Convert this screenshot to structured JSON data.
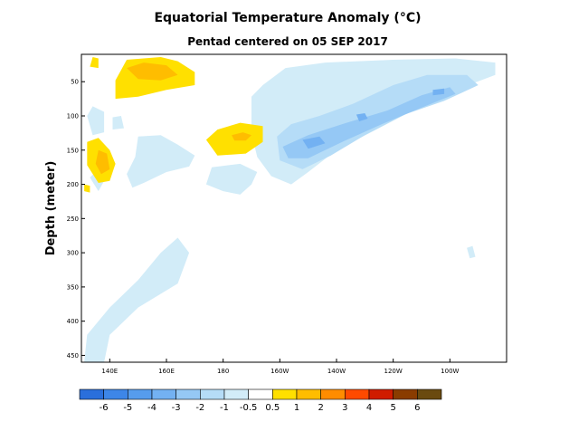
{
  "chart_data": {
    "type": "heatmap",
    "title": "Equatorial Temperature Anomaly (°C)",
    "subtitle": "Pentad centered on 05 SEP 2017",
    "ylabel": "Depth (meter)",
    "xlabel": "",
    "x_ticks": [
      {
        "lon": 140,
        "label": "140E"
      },
      {
        "lon": 160,
        "label": "160E"
      },
      {
        "lon": 180,
        "label": "180"
      },
      {
        "lon": 200,
        "label": "160W"
      },
      {
        "lon": 220,
        "label": "140W"
      },
      {
        "lon": 240,
        "label": "120W"
      },
      {
        "lon": 260,
        "label": "100W"
      }
    ],
    "y_ticks": [
      50,
      100,
      150,
      200,
      250,
      300,
      350,
      400,
      450
    ],
    "xlim": [
      130,
      280
    ],
    "ylim": [
      10,
      460
    ],
    "grid": false,
    "colorbar": {
      "colors": [
        "#2a6fdb",
        "#3d86e8",
        "#569ced",
        "#73b1f2",
        "#95c8f5",
        "#b5dcf7",
        "#d2ecf8",
        "#ffffff",
        "#ffe000",
        "#ffbd00",
        "#ff8c00",
        "#ff4a00",
        "#d01c00",
        "#8a3c00",
        "#6a4a10"
      ],
      "labels": [
        "-6",
        "-5",
        "-4",
        "-3",
        "-2",
        "-1",
        "-0.5",
        "0.5",
        "1",
        "2",
        "3",
        "4",
        "5",
        "6"
      ]
    },
    "regions": [
      {
        "value": -0.5,
        "points": [
          [
            190,
            72
          ],
          [
            194,
            55
          ],
          [
            202,
            30
          ],
          [
            216,
            22
          ],
          [
            240,
            18
          ],
          [
            262,
            16
          ],
          [
            276,
            22
          ],
          [
            276,
            40
          ],
          [
            262,
            62
          ],
          [
            248,
            90
          ],
          [
            234,
            120
          ],
          [
            220,
            150
          ],
          [
            210,
            182
          ],
          [
            204,
            200
          ],
          [
            197,
            188
          ],
          [
            192,
            160
          ],
          [
            190,
            125
          ]
        ]
      },
      {
        "value": -1,
        "points": [
          [
            199,
            130
          ],
          [
            204,
            112
          ],
          [
            214,
            100
          ],
          [
            226,
            82
          ],
          [
            240,
            55
          ],
          [
            252,
            40
          ],
          [
            266,
            40
          ],
          [
            270,
            55
          ],
          [
            258,
            78
          ],
          [
            244,
            98
          ],
          [
            230,
            128
          ],
          [
            218,
            158
          ],
          [
            208,
            178
          ],
          [
            200,
            165
          ]
        ]
      },
      {
        "value": -2,
        "points": [
          [
            201,
            145
          ],
          [
            210,
            128
          ],
          [
            222,
            112
          ],
          [
            238,
            92
          ],
          [
            250,
            70
          ],
          [
            260,
            58
          ],
          [
            262,
            68
          ],
          [
            250,
            88
          ],
          [
            236,
            112
          ],
          [
            222,
            138
          ],
          [
            210,
            162
          ],
          [
            203,
            162
          ]
        ]
      },
      {
        "value": -3,
        "points": [
          [
            208,
            135
          ],
          [
            214,
            130
          ],
          [
            216,
            140
          ],
          [
            210,
            148
          ]
        ]
      },
      {
        "value": -3,
        "points": [
          [
            227,
            98
          ],
          [
            230,
            96
          ],
          [
            231,
            104
          ],
          [
            228,
            108
          ]
        ]
      },
      {
        "value": -3,
        "points": [
          [
            254,
            62
          ],
          [
            258,
            60
          ],
          [
            258,
            68
          ],
          [
            254,
            70
          ]
        ]
      },
      {
        "value": -0.5,
        "points": [
          [
            132,
            100
          ],
          [
            134,
            86
          ],
          [
            138,
            94
          ],
          [
            138,
            124
          ],
          [
            134,
            128
          ]
        ]
      },
      {
        "value": -0.5,
        "points": [
          [
            141,
            102
          ],
          [
            144,
            100
          ],
          [
            145,
            118
          ],
          [
            141,
            120
          ]
        ]
      },
      {
        "value": -0.5,
        "points": [
          [
            150,
            130
          ],
          [
            158,
            128
          ],
          [
            164,
            142
          ],
          [
            170,
            158
          ],
          [
            168,
            174
          ],
          [
            160,
            182
          ],
          [
            152,
            198
          ],
          [
            148,
            205
          ],
          [
            146,
            185
          ],
          [
            149,
            160
          ]
        ]
      },
      {
        "value": -0.5,
        "points": [
          [
            176,
            175
          ],
          [
            186,
            170
          ],
          [
            192,
            182
          ],
          [
            190,
            200
          ],
          [
            186,
            215
          ],
          [
            180,
            210
          ],
          [
            174,
            200
          ]
        ]
      },
      {
        "value": -0.5,
        "points": [
          [
            131,
            460
          ],
          [
            132,
            420
          ],
          [
            140,
            380
          ],
          [
            150,
            340
          ],
          [
            158,
            300
          ],
          [
            164,
            278
          ],
          [
            168,
            300
          ],
          [
            164,
            345
          ],
          [
            150,
            380
          ],
          [
            140,
            420
          ],
          [
            138,
            460
          ]
        ]
      },
      {
        "value": -0.5,
        "points": [
          [
            133,
            190
          ],
          [
            136,
            178
          ],
          [
            138,
            195
          ],
          [
            136,
            210
          ]
        ]
      },
      {
        "value": -0.5,
        "points": [
          [
            266,
            293
          ],
          [
            268,
            290
          ],
          [
            269,
            306
          ],
          [
            267,
            308
          ]
        ]
      },
      {
        "value": 0.5,
        "points": [
          [
            142,
            75
          ],
          [
            142,
            48
          ],
          [
            146,
            18
          ],
          [
            158,
            14
          ],
          [
            164,
            20
          ],
          [
            170,
            36
          ],
          [
            170,
            55
          ],
          [
            160,
            62
          ],
          [
            150,
            72
          ]
        ]
      },
      {
        "value": 1,
        "points": [
          [
            146,
            30
          ],
          [
            152,
            22
          ],
          [
            160,
            26
          ],
          [
            164,
            40
          ],
          [
            158,
            48
          ],
          [
            150,
            46
          ]
        ]
      },
      {
        "value": 0.5,
        "points": [
          [
            174,
            135
          ],
          [
            178,
            120
          ],
          [
            186,
            110
          ],
          [
            194,
            115
          ],
          [
            194,
            138
          ],
          [
            188,
            155
          ],
          [
            178,
            158
          ]
        ]
      },
      {
        "value": 1,
        "points": [
          [
            183,
            128
          ],
          [
            187,
            124
          ],
          [
            190,
            128
          ],
          [
            188,
            136
          ],
          [
            184,
            136
          ]
        ]
      },
      {
        "value": 0.5,
        "points": [
          [
            132,
            172
          ],
          [
            132,
            138
          ],
          [
            136,
            132
          ],
          [
            140,
            150
          ],
          [
            142,
            170
          ],
          [
            140,
            195
          ],
          [
            136,
            198
          ]
        ]
      },
      {
        "value": 1,
        "points": [
          [
            135,
            170
          ],
          [
            136,
            150
          ],
          [
            139,
            155
          ],
          [
            140,
            178
          ],
          [
            137,
            185
          ]
        ]
      },
      {
        "value": 0.5,
        "points": [
          [
            133,
            28
          ],
          [
            134,
            14
          ],
          [
            136,
            16
          ],
          [
            136,
            30
          ]
        ]
      },
      {
        "value": 0.5,
        "points": [
          [
            131,
            210
          ],
          [
            131,
            200
          ],
          [
            133,
            202
          ],
          [
            133,
            212
          ]
        ]
      }
    ]
  }
}
